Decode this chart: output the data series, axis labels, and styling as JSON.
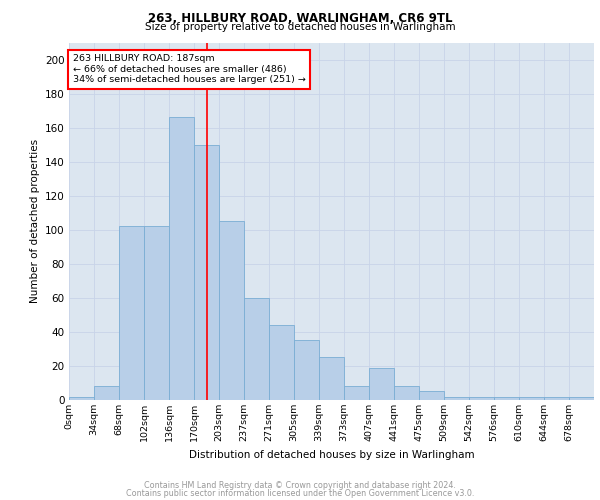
{
  "title1": "263, HILLBURY ROAD, WARLINGHAM, CR6 9TL",
  "title2": "Size of property relative to detached houses in Warlingham",
  "xlabel": "Distribution of detached houses by size in Warlingham",
  "ylabel": "Number of detached properties",
  "footnote1": "Contains HM Land Registry data © Crown copyright and database right 2024.",
  "footnote2": "Contains public sector information licensed under the Open Government Licence v3.0.",
  "bar_labels": [
    "0sqm",
    "34sqm",
    "68sqm",
    "102sqm",
    "136sqm",
    "170sqm",
    "203sqm",
    "237sqm",
    "271sqm",
    "305sqm",
    "339sqm",
    "373sqm",
    "407sqm",
    "441sqm",
    "475sqm",
    "509sqm",
    "542sqm",
    "576sqm",
    "610sqm",
    "644sqm",
    "678sqm"
  ],
  "bar_values": [
    2,
    8,
    102,
    102,
    166,
    150,
    105,
    60,
    44,
    35,
    25,
    8,
    19,
    8,
    5,
    2,
    2,
    2,
    2,
    2,
    2
  ],
  "bar_color": "#b8cfe8",
  "bar_edge_color": "#7aadd4",
  "vline_x": 187,
  "vline_color": "red",
  "annotation_text": "263 HILLBURY ROAD: 187sqm\n← 66% of detached houses are smaller (486)\n34% of semi-detached houses are larger (251) →",
  "annotation_box_color": "red",
  "ylim": [
    0,
    210
  ],
  "yticks": [
    0,
    20,
    40,
    60,
    80,
    100,
    120,
    140,
    160,
    180,
    200
  ],
  "grid_color": "#c8d4e8",
  "bg_color": "#dce6f0",
  "bin_width": 34
}
